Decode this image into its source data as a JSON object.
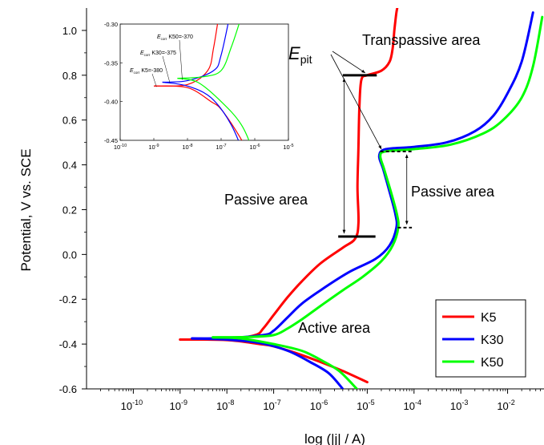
{
  "chart_data": {
    "type": "line",
    "xlabel": "log (|j| / A)",
    "ylabel": "Potential, V vs. SCE",
    "x_scale": "log",
    "x_ticks": [
      1e-10,
      1e-09,
      1e-08,
      1e-07,
      1e-06,
      1e-05,
      0.0001,
      0.001,
      0.01
    ],
    "x_tick_exponents": [
      "-10",
      "-9",
      "-8",
      "-7",
      "-6",
      "-5",
      "-4",
      "-3",
      "-2"
    ],
    "y_ticks": [
      -0.6,
      -0.4,
      -0.2,
      0.0,
      0.2,
      0.4,
      0.6,
      0.8,
      1.0
    ],
    "y_tick_labels": [
      "-0.6",
      "-0.4",
      "-0.2",
      "0.0",
      "0.2",
      "0.4",
      "0.6",
      "0.8",
      "1.0"
    ],
    "xlim": [
      1e-11,
      0.06
    ],
    "ylim": [
      -0.6,
      1.1
    ],
    "grid": false,
    "legend_placement": "bottom-right",
    "series": [
      {
        "name": "K5",
        "color": "#ff0000",
        "anodic": [
          [
            1e-09,
            -0.38
          ],
          [
            1e-08,
            -0.378
          ],
          [
            4e-08,
            -0.36
          ],
          [
            6e-08,
            -0.33
          ],
          [
            1e-07,
            -0.27
          ],
          [
            2e-07,
            -0.19
          ],
          [
            4e-07,
            -0.12
          ],
          [
            1e-06,
            -0.04
          ],
          [
            3e-06,
            0.03
          ],
          [
            5.5e-06,
            0.07
          ],
          [
            6.5e-06,
            0.14
          ],
          [
            6.2e-06,
            0.3
          ],
          [
            6.5e-06,
            0.48
          ],
          [
            6.8e-06,
            0.66
          ],
          [
            7.5e-06,
            0.78
          ],
          [
            1e-05,
            0.8
          ],
          [
            2e-05,
            0.82
          ],
          [
            3e-05,
            0.86
          ],
          [
            3.5e-05,
            0.92
          ],
          [
            3.8e-05,
            1.0
          ],
          [
            4.2e-05,
            1.08
          ],
          [
            4.6e-05,
            1.12
          ]
        ],
        "cathodic": [
          [
            1e-09,
            -0.38
          ],
          [
            1e-08,
            -0.382
          ],
          [
            5e-08,
            -0.4
          ],
          [
            1e-07,
            -0.41
          ],
          [
            3e-07,
            -0.44
          ],
          [
            1e-06,
            -0.48
          ],
          [
            3e-06,
            -0.52
          ],
          [
            1e-05,
            -0.57
          ]
        ]
      },
      {
        "name": "K30",
        "color": "#0000ff",
        "anodic": [
          [
            1.8e-09,
            -0.375
          ],
          [
            1e-08,
            -0.373
          ],
          [
            6e-08,
            -0.36
          ],
          [
            1e-07,
            -0.34
          ],
          [
            2e-07,
            -0.28
          ],
          [
            4e-07,
            -0.22
          ],
          [
            1e-06,
            -0.16
          ],
          [
            4e-06,
            -0.08
          ],
          [
            1.5e-05,
            -0.02
          ],
          [
            3e-05,
            0.04
          ],
          [
            4.2e-05,
            0.12
          ],
          [
            4e-05,
            0.18
          ],
          [
            3e-05,
            0.28
          ],
          [
            2.2e-05,
            0.38
          ],
          [
            1.8e-05,
            0.44
          ],
          [
            2.5e-05,
            0.47
          ],
          [
            0.0001,
            0.48
          ],
          [
            0.0005,
            0.5
          ],
          [
            0.002,
            0.55
          ],
          [
            0.005,
            0.62
          ],
          [
            0.01,
            0.72
          ],
          [
            0.02,
            0.86
          ],
          [
            0.035,
            1.08
          ]
        ],
        "cathodic": [
          [
            1.8e-09,
            -0.375
          ],
          [
            1e-08,
            -0.38
          ],
          [
            5e-08,
            -0.395
          ],
          [
            2e-07,
            -0.43
          ],
          [
            6e-07,
            -0.48
          ],
          [
            1.5e-06,
            -0.53
          ],
          [
            3e-06,
            -0.6
          ]
        ]
      },
      {
        "name": "K50",
        "color": "#00ff00",
        "anodic": [
          [
            5e-09,
            -0.37
          ],
          [
            3e-08,
            -0.368
          ],
          [
            1e-07,
            -0.36
          ],
          [
            2e-07,
            -0.33
          ],
          [
            4e-07,
            -0.29
          ],
          [
            1e-06,
            -0.23
          ],
          [
            3e-06,
            -0.16
          ],
          [
            8e-06,
            -0.1
          ],
          [
            2e-05,
            -0.03
          ],
          [
            3.5e-05,
            0.04
          ],
          [
            4.6e-05,
            0.12
          ],
          [
            4.3e-05,
            0.18
          ],
          [
            3.2e-05,
            0.28
          ],
          [
            2.3e-05,
            0.38
          ],
          [
            1.9e-05,
            0.44
          ],
          [
            2.5e-05,
            0.46
          ],
          [
            0.0001,
            0.47
          ],
          [
            0.0006,
            0.49
          ],
          [
            0.003,
            0.54
          ],
          [
            0.008,
            0.6
          ],
          [
            0.02,
            0.7
          ],
          [
            0.035,
            0.84
          ],
          [
            0.055,
            1.06
          ]
        ],
        "cathodic": [
          [
            5e-09,
            -0.37
          ],
          [
            2e-08,
            -0.375
          ],
          [
            1e-07,
            -0.4
          ],
          [
            4e-07,
            -0.43
          ],
          [
            1e-06,
            -0.47
          ],
          [
            2.5e-06,
            -0.52
          ],
          [
            6e-06,
            -0.6
          ]
        ]
      }
    ],
    "annotations": {
      "transpassive": "Transpassive area",
      "epit_main": "E",
      "epit_sub": "pit",
      "passive_left": "Passive area",
      "passive_right": "Passive area",
      "active": "Active area",
      "K5_epit": 0.8,
      "K5_passive_start": 0.08,
      "K30_K50_epit": 0.46,
      "K30_K50_passive_start": 0.12
    },
    "inset": {
      "xlim": [
        1e-10,
        1e-05
      ],
      "ylim": [
        -0.45,
        -0.3
      ],
      "x_tick_exponents": [
        "-10",
        "-9",
        "-8",
        "-7",
        "-6",
        "-5"
      ],
      "y_tick_labels": [
        "-0.30",
        "-0.35",
        "-0.40",
        "-0.45"
      ],
      "y_ticks": [
        -0.3,
        -0.35,
        -0.4,
        -0.45
      ],
      "ecorr_labels": [
        {
          "prefix": "E",
          "sub": "corr",
          "text": " K50=-370"
        },
        {
          "prefix": "E",
          "sub": "corr",
          "text": " K30=-375"
        },
        {
          "prefix": "E",
          "sub": "corr",
          "text": " K5=-380"
        }
      ]
    }
  }
}
